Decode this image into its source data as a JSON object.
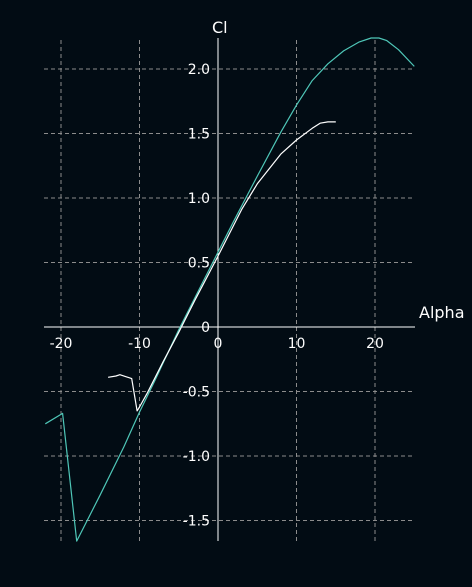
{
  "chart_data": {
    "type": "line",
    "xlabel": "Alpha",
    "ylabel": "Cl",
    "xlim": [
      -22,
      25
    ],
    "ylim": [
      -1.65,
      2.25
    ],
    "grid": true,
    "x_ticks": [
      -20,
      -10,
      0,
      10,
      20
    ],
    "x_tick_labels": [
      "-20",
      "-10",
      "0",
      "10",
      "20"
    ],
    "y_ticks": [
      -1.5,
      -1.0,
      -0.5,
      0,
      0.5,
      1.0,
      1.5,
      2.0
    ],
    "y_tick_labels": [
      "-1.5",
      "-1.0",
      "-0.5",
      "0",
      "0.5",
      "1.0",
      "1.5",
      "2.0"
    ],
    "colors": {
      "background": "#020c14",
      "axes": "#ffffff",
      "grid": "#8c8c8c"
    },
    "series": [
      {
        "color": "#4fc7b8",
        "x": [
          -22.0,
          -19.8,
          -18.0,
          -15,
          -12,
          -10,
          -8,
          -5,
          -2,
          0,
          2,
          5,
          8,
          10,
          12,
          14,
          16,
          18,
          19.5,
          20.5,
          21.5,
          23,
          25
        ],
        "y": [
          -0.75,
          -0.67,
          -1.66,
          -1.3,
          -0.93,
          -0.66,
          -0.41,
          -0.02,
          0.34,
          0.58,
          0.82,
          1.17,
          1.51,
          1.72,
          1.91,
          2.04,
          2.14,
          2.21,
          2.24,
          2.24,
          2.22,
          2.15,
          2.02
        ]
      },
      {
        "color": "#ffffff",
        "x": [
          -14,
          -13,
          -12.5,
          -11,
          -10.3,
          -10,
          -9,
          -7,
          -5,
          -3,
          0,
          3,
          5,
          8,
          10,
          12,
          13,
          14,
          15
        ],
        "y": [
          -0.39,
          -0.38,
          -0.37,
          -0.4,
          -0.65,
          -0.62,
          -0.51,
          -0.27,
          -0.04,
          0.2,
          0.55,
          0.91,
          1.11,
          1.34,
          1.45,
          1.54,
          1.58,
          1.59,
          1.59
        ]
      }
    ]
  }
}
